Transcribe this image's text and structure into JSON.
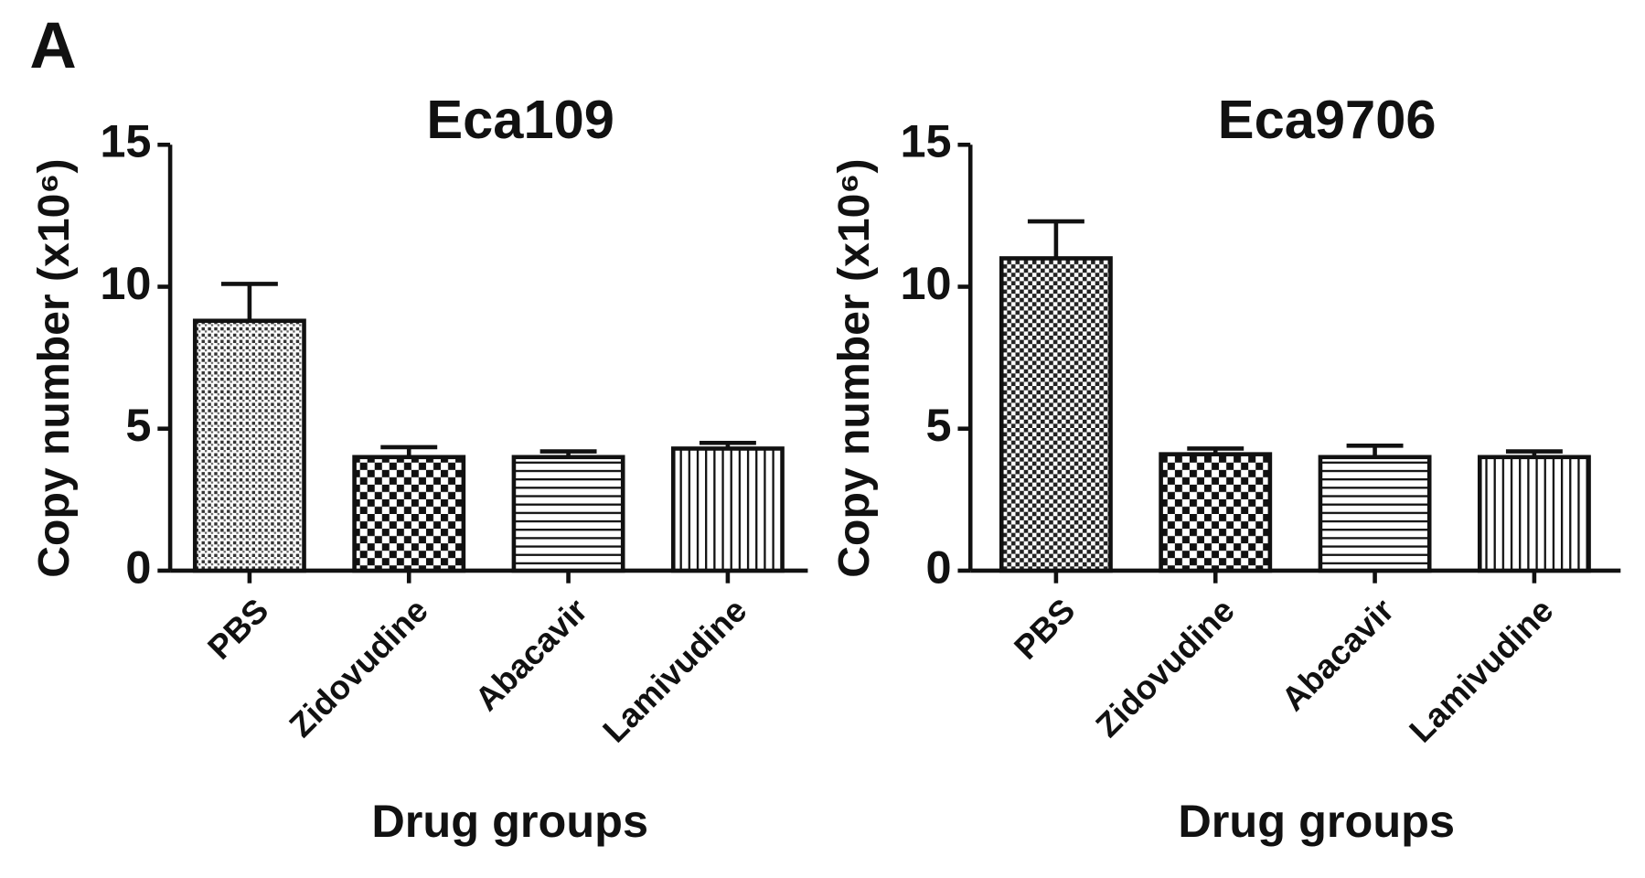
{
  "panel_label": "A",
  "chart_data": [
    {
      "type": "bar",
      "title": "Eca109",
      "ylabel": "Copy number (x10⁶)",
      "xlabel": "Drug groups",
      "categories": [
        "PBS",
        "Zidovudine",
        "Abacavir",
        "Lamivudine"
      ],
      "values": [
        8.8,
        4.0,
        4.0,
        4.3
      ],
      "errors": [
        1.3,
        0.35,
        0.2,
        0.2
      ],
      "bar_patterns": [
        "dots",
        "checker",
        "hlines",
        "vlines"
      ],
      "color": "#111111",
      "ylim": [
        0,
        15
      ],
      "yticks": [
        0,
        5,
        10,
        15
      ]
    },
    {
      "type": "bar",
      "title": "Eca9706",
      "ylabel": "Copy number (x10⁶)",
      "xlabel": "Drug groups",
      "categories": [
        "PBS",
        "Zidovudine",
        "Abacavir",
        "Lamivudine"
      ],
      "values": [
        11.0,
        4.1,
        4.0,
        4.0
      ],
      "errors": [
        1.3,
        0.2,
        0.4,
        0.2
      ],
      "bar_patterns": [
        "checker-fine",
        "checker",
        "hlines",
        "vlines"
      ],
      "color": "#111111",
      "ylim": [
        0,
        15
      ],
      "yticks": [
        0,
        5,
        10,
        15
      ]
    }
  ]
}
